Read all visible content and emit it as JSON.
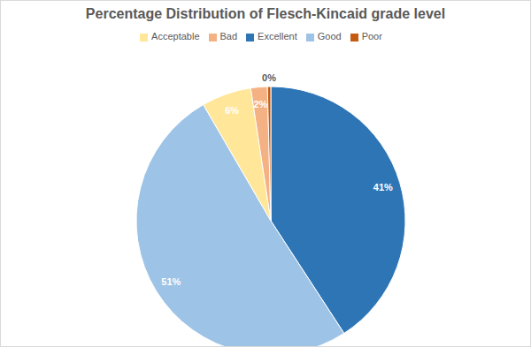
{
  "chart_data": {
    "type": "pie",
    "title": "Percentage Distribution of Flesch-Kincaid grade level",
    "categories": [
      "Excellent",
      "Good",
      "Acceptable",
      "Bad",
      "Poor"
    ],
    "values": [
      41,
      51,
      6,
      2,
      0.4
    ],
    "value_labels": [
      "41%",
      "51%",
      "6%",
      "2%",
      "0%"
    ],
    "colors": [
      "#2e75b6",
      "#9dc3e6",
      "#ffe699",
      "#f4b183",
      "#c55a11"
    ],
    "data_labels": true,
    "legend": "top"
  }
}
